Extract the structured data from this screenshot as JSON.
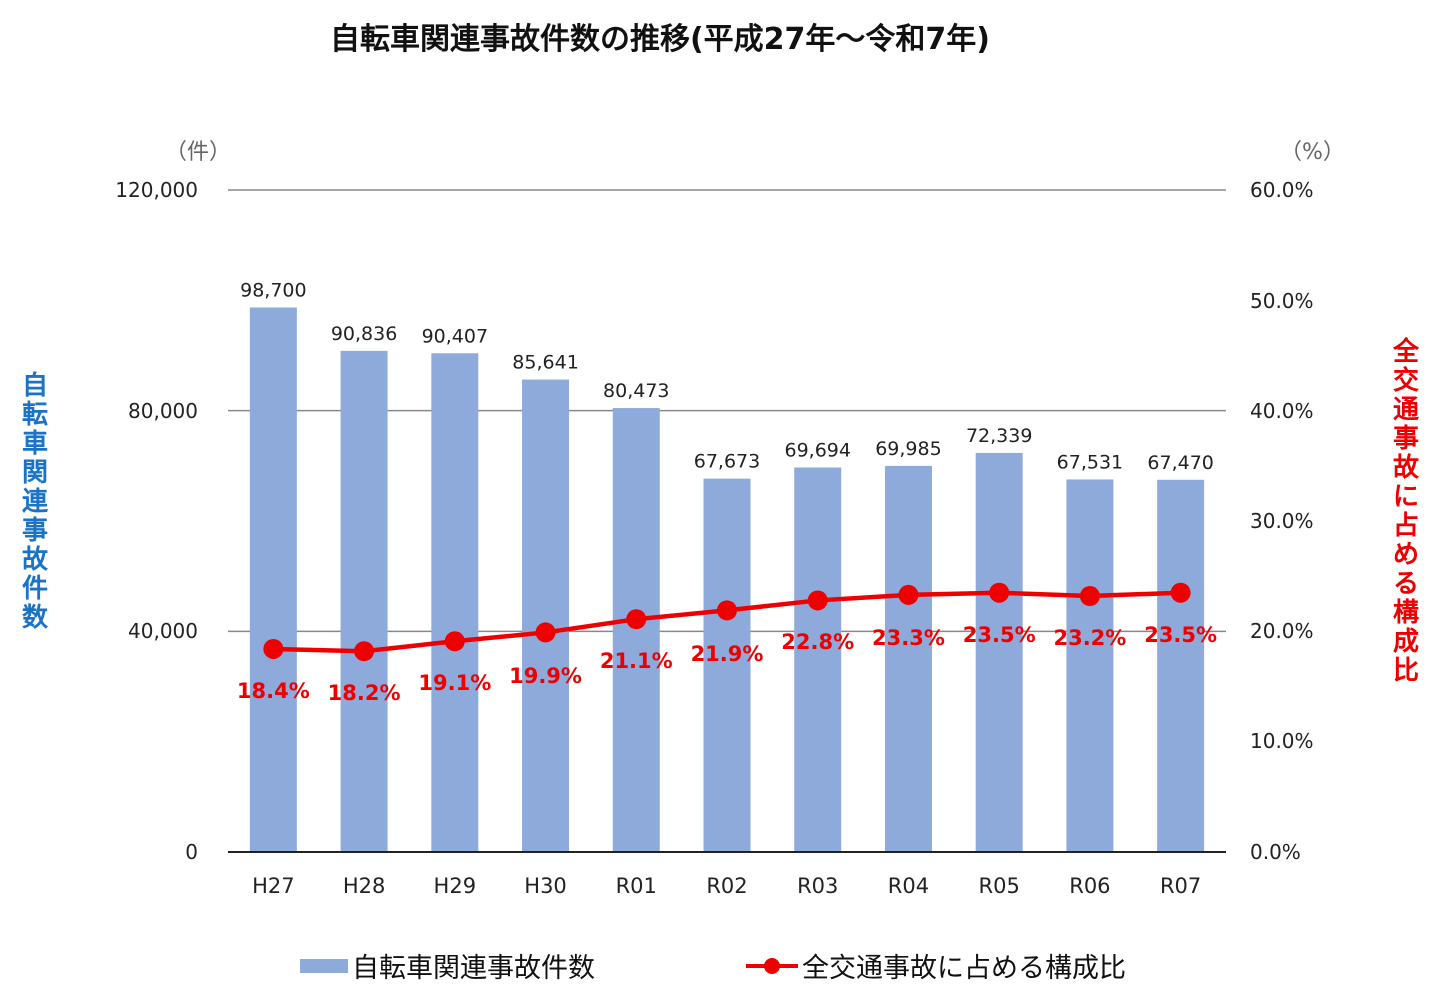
{
  "title": "自転車関連事故件数の推移(平成27年～令和7年)",
  "left_axis": {
    "unit": "（件）",
    "label": "自転車関連事故件数",
    "label_color": "#1a73c6",
    "ticks": [
      "120,000",
      "80,000",
      "40,000",
      "0"
    ]
  },
  "right_axis": {
    "unit": "（%）",
    "label": "全交通事故に占める構成比",
    "label_color": "#ee0000",
    "ticks": [
      "60.0%",
      "50.0%",
      "40.0%",
      "30.0%",
      "20.0%",
      "10.0%",
      "0.0%"
    ]
  },
  "legend": {
    "bar_label": "自転車関連事故件数",
    "line_label": "全交通事故に占める構成比"
  },
  "colors": {
    "bar": "#8eaadb",
    "line": "#ee0000",
    "grid": "#888888"
  },
  "chart_data": {
    "type": "bar+line",
    "title": "自転車関連事故件数の推移(平成27年～令和7年)",
    "categories": [
      "H27",
      "H28",
      "H29",
      "H30",
      "R01",
      "R02",
      "R03",
      "R04",
      "R05",
      "R06",
      "R07"
    ],
    "series": [
      {
        "name": "自転車関連事故件数",
        "type": "bar",
        "axis": "left",
        "values": [
          98700,
          90836,
          90407,
          85641,
          80473,
          67673,
          69694,
          69985,
          72339,
          67531,
          67470
        ],
        "labels": [
          "98,700",
          "90,836",
          "90,407",
          "85,641",
          "80,473",
          "67,673",
          "69,694",
          "69,985",
          "72,339",
          "67,531",
          "67,470"
        ]
      },
      {
        "name": "全交通事故に占める構成比",
        "type": "line",
        "axis": "right",
        "values": [
          18.4,
          18.2,
          19.1,
          19.9,
          21.1,
          21.9,
          22.8,
          23.3,
          23.5,
          23.2,
          23.5
        ],
        "labels": [
          "18.4%",
          "18.2%",
          "19.1%",
          "19.9%",
          "21.1%",
          "21.9%",
          "22.8%",
          "23.3%",
          "23.5%",
          "23.2%",
          "23.5%"
        ]
      }
    ],
    "xlabel": "",
    "ylabel_left": "自転車関連事故件数（件）",
    "ylabel_right": "全交通事故に占める構成比（%）",
    "ylim_left": [
      0,
      120000
    ],
    "ylim_right": [
      0,
      60
    ],
    "left_ticks": [
      0,
      40000,
      80000,
      120000
    ],
    "right_ticks": [
      0,
      10,
      20,
      30,
      40,
      50,
      60
    ],
    "grid": true,
    "legend_position": "bottom"
  }
}
